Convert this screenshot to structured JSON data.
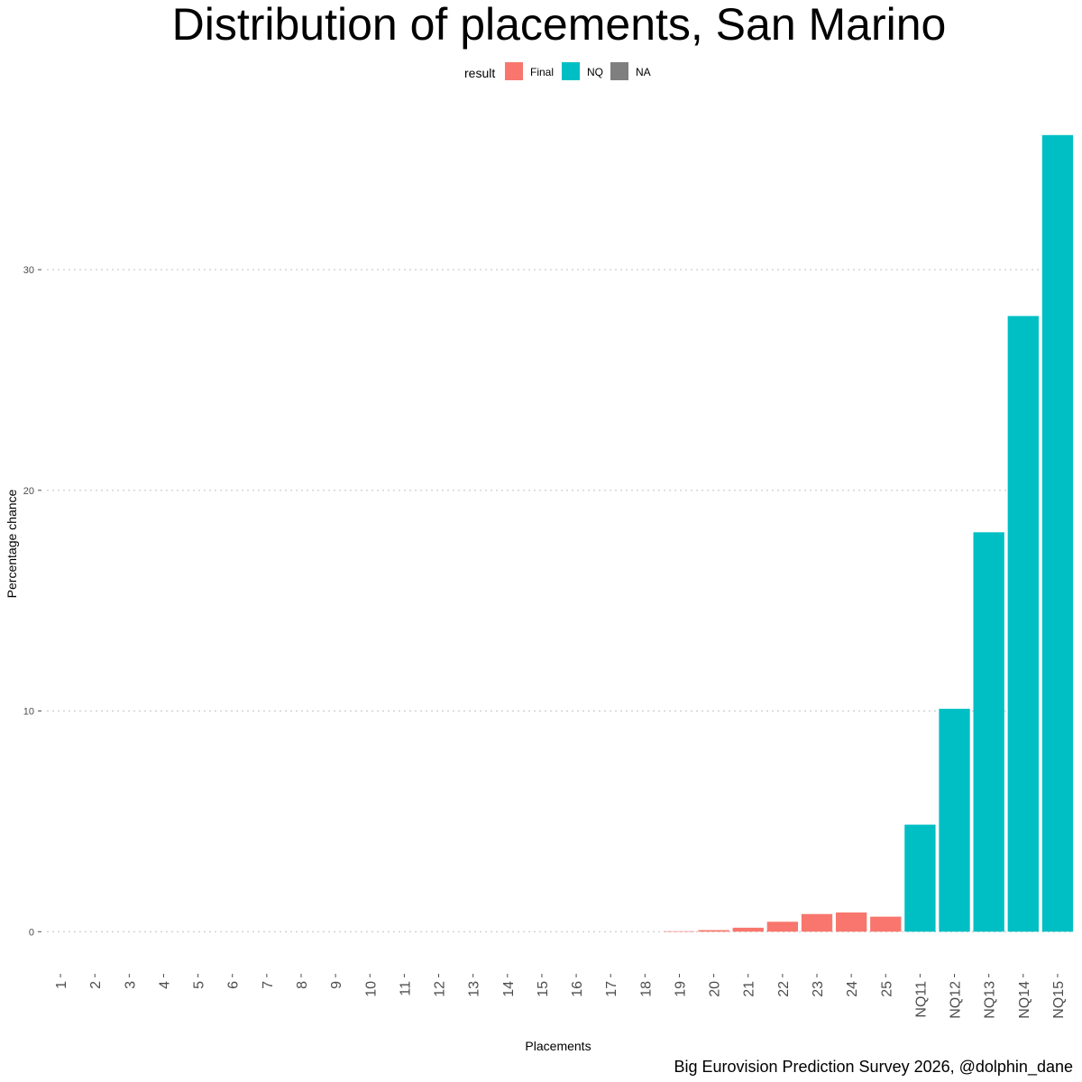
{
  "chart_data": {
    "type": "bar",
    "title": "Distribution of placements, San Marino",
    "xlabel": "Placements",
    "ylabel": "Percentage chance",
    "caption": "Big Eurovision Prediction Survey 2026, @dolphin_dane",
    "ylim": [
      -1.5,
      36.5
    ],
    "yticks": [
      0,
      10,
      20,
      30
    ],
    "grid": "horizontal-dotted",
    "legend": {
      "title": "result",
      "position": "top",
      "entries": [
        {
          "label": "Final",
          "color": "#F8766D"
        },
        {
          "label": "NQ",
          "color": "#00BFC4"
        },
        {
          "label": "NA",
          "color": "#7F7F7F"
        }
      ]
    },
    "categories": [
      "1",
      "2",
      "3",
      "4",
      "5",
      "6",
      "7",
      "8",
      "9",
      "10",
      "11",
      "12",
      "13",
      "14",
      "15",
      "16",
      "17",
      "18",
      "19",
      "20",
      "21",
      "22",
      "23",
      "24",
      "25",
      "NQ11",
      "NQ12",
      "NQ13",
      "NQ14",
      "NQ15"
    ],
    "values": [
      0,
      0,
      0,
      0,
      0,
      0,
      0,
      0,
      0,
      0,
      0,
      0,
      0,
      0,
      0,
      0,
      0,
      0,
      0.02,
      0.07,
      0.18,
      0.45,
      0.8,
      0.87,
      0.68,
      4.85,
      10.1,
      18.1,
      27.9,
      36.1
    ],
    "groups": [
      "Final",
      "Final",
      "Final",
      "Final",
      "Final",
      "Final",
      "Final",
      "Final",
      "Final",
      "Final",
      "Final",
      "Final",
      "Final",
      "Final",
      "Final",
      "Final",
      "Final",
      "Final",
      "Final",
      "Final",
      "Final",
      "Final",
      "Final",
      "Final",
      "Final",
      "NQ",
      "NQ",
      "NQ",
      "NQ",
      "NQ"
    ]
  }
}
